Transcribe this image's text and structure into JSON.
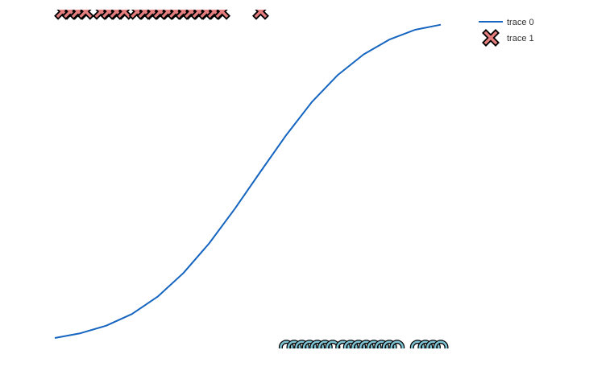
{
  "chart_data": {
    "type": "line",
    "title": "",
    "xlabel": "",
    "ylabel": "",
    "xlim": [
      0,
      15
    ],
    "ylim": [
      0,
      1
    ],
    "grid": false,
    "legend_position": "top-right",
    "series": [
      {
        "name": "trace 0",
        "mode": "line",
        "color": "#1565c0",
        "x": [
          0,
          1,
          2,
          3,
          4,
          5,
          6,
          7,
          8,
          9,
          10,
          11,
          12,
          13,
          14,
          15
        ],
        "y": [
          0.0,
          0.015,
          0.039,
          0.076,
          0.131,
          0.206,
          0.3,
          0.41,
          0.528,
          0.644,
          0.749,
          0.834,
          0.899,
          0.946,
          0.977,
          0.993
        ]
      },
      {
        "name": "trace 1",
        "mode": "markers",
        "marker": "x-cross",
        "color": "#e57f7f",
        "outline_color": "#000000",
        "x": [
          0.3,
          0.6,
          0.9,
          1.2,
          1.8,
          2.1,
          2.4,
          2.7,
          3.2,
          3.5,
          3.8,
          4.1,
          4.4,
          4.7,
          5.0,
          5.3,
          5.6,
          5.9,
          6.2,
          6.5,
          8.0
        ],
        "y": [
          1.035,
          1.035,
          1.035,
          1.035,
          1.035,
          1.035,
          1.035,
          1.035,
          1.035,
          1.035,
          1.035,
          1.035,
          1.035,
          1.035,
          1.035,
          1.035,
          1.035,
          1.035,
          1.035,
          1.035,
          1.035
        ]
      },
      {
        "mode": "markers",
        "marker": "circle-open",
        "color": "#7fc4d4",
        "outline_color": "#000000",
        "x": [
          9.0,
          9.3,
          9.6,
          9.9,
          10.2,
          10.5,
          10.8,
          11.2,
          11.5,
          11.8,
          12.1,
          12.4,
          12.7,
          13.0,
          13.3,
          14.1,
          14.4,
          14.7,
          15.0
        ],
        "y": [
          -0.03,
          -0.03,
          -0.03,
          -0.03,
          -0.03,
          -0.03,
          -0.03,
          -0.03,
          -0.03,
          -0.03,
          -0.03,
          -0.03,
          -0.03,
          -0.03,
          -0.03,
          -0.03,
          -0.03,
          -0.03,
          -0.03
        ]
      }
    ]
  }
}
